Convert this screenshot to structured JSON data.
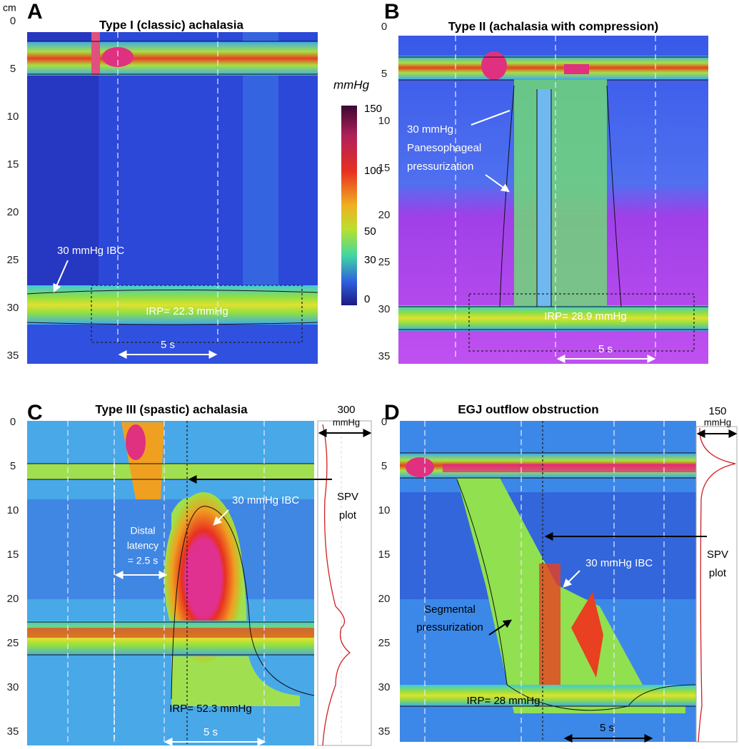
{
  "panels": [
    {
      "letter": "A",
      "title": "Type I (classic) achalasia",
      "y_unit": "cm",
      "y_tick_labels": [
        "0",
        "5",
        "10",
        "15",
        "20",
        "25",
        "30",
        "35"
      ],
      "annotations": [
        "30 mmHg IBC",
        "IRP= 22.3 mmHg",
        "5 s"
      ]
    },
    {
      "letter": "B",
      "title": "Type II (achalasia with compression)",
      "y_tick_labels": [
        "0",
        "5",
        "10",
        "15",
        "20",
        "25",
        "30",
        "35"
      ],
      "annotations": [
        "30 mmHg",
        "Panesophageal",
        "pressurization",
        "IRP= 28.9 mmHg",
        "5 s"
      ]
    },
    {
      "letter": "C",
      "title": "Type III (spastic) achalasia",
      "y_tick_labels": [
        "0",
        "5",
        "10",
        "15",
        "20",
        "25",
        "30",
        "35"
      ],
      "annotations": [
        "30 mmHg IBC",
        "Distal",
        "latency",
        "= 2.5 s",
        "IRP= 52.3 mmHg",
        "5 s",
        "SPV",
        "plot",
        "300",
        "mmHg"
      ]
    },
    {
      "letter": "D",
      "title": "EGJ outflow obstruction",
      "y_tick_labels": [
        "0",
        "5",
        "10",
        "15",
        "20",
        "25",
        "30",
        "35"
      ],
      "annotations": [
        "30 mmHg IBC",
        "Segmental",
        "pressurization",
        "IRP= 28 mmHg",
        "5 s",
        "SPV",
        "plot",
        "150",
        "mmHg"
      ]
    }
  ],
  "colorbar": {
    "unit": "mmHg",
    "tick_labels": [
      "150",
      "100",
      "50",
      "30",
      "0"
    ]
  }
}
